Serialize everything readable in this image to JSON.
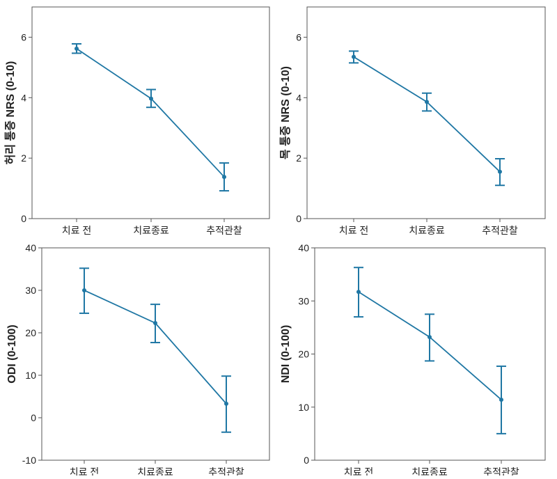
{
  "colors": {
    "series": "#1f77a4",
    "frame": "#555555"
  },
  "chart_data": [
    {
      "type": "line",
      "ylabel": "허리 통증 NRS (0-10)",
      "categories": [
        "치료 전",
        "치료종료",
        "추적관찰"
      ],
      "values": [
        5.62,
        3.97,
        1.38
      ],
      "error_low": [
        5.47,
        3.68,
        0.92
      ],
      "error_high": [
        5.78,
        4.27,
        1.84
      ],
      "ylim": [
        0,
        7
      ],
      "yticks": [
        0,
        2,
        4,
        6
      ]
    },
    {
      "type": "line",
      "ylabel": "목 통증 NRS (0-10)",
      "categories": [
        "치료 전",
        "치료종료",
        "추적관찰"
      ],
      "values": [
        5.35,
        3.86,
        1.55
      ],
      "error_low": [
        5.15,
        3.56,
        1.1
      ],
      "error_high": [
        5.54,
        4.15,
        1.98
      ],
      "ylim": [
        0,
        7
      ],
      "yticks": [
        0,
        2,
        4,
        6
      ]
    },
    {
      "type": "line",
      "ylabel": "ODI (0-100)",
      "categories": [
        "치료 전",
        "치료종료",
        "추적관찰"
      ],
      "values": [
        30.0,
        22.3,
        3.3
      ],
      "error_low": [
        24.6,
        17.7,
        -3.4
      ],
      "error_high": [
        35.2,
        26.7,
        9.8
      ],
      "ylim": [
        -10,
        40
      ],
      "yticks": [
        -10,
        0,
        10,
        20,
        30,
        40
      ]
    },
    {
      "type": "line",
      "ylabel": "NDI (0-100)",
      "categories": [
        "치료 전",
        "치료종료",
        "추적관찰"
      ],
      "values": [
        31.7,
        23.2,
        11.4
      ],
      "error_low": [
        27.0,
        18.7,
        5.0
      ],
      "error_high": [
        36.3,
        27.5,
        17.7
      ],
      "ylim": [
        0,
        40
      ],
      "yticks": [
        0,
        10,
        20,
        30,
        40
      ]
    }
  ]
}
